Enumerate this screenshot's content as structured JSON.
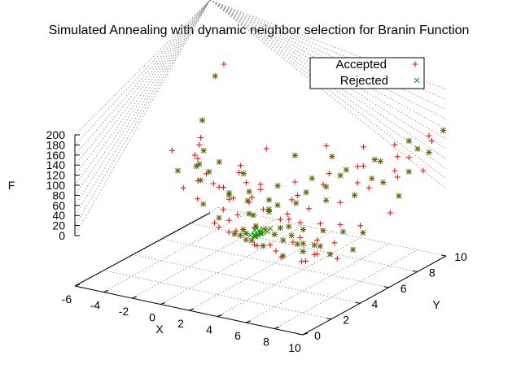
{
  "chart_data": {
    "type": "scatter",
    "title": "Simulated Annealing with dynamic neighbor selection for Branin Function",
    "xlabel": "X",
    "ylabel": "Y",
    "zlabel": "F",
    "xlim": [
      -6,
      10
    ],
    "ylim": [
      0,
      10
    ],
    "zlim": [
      0,
      200
    ],
    "xticks": [
      "-6",
      "-4",
      "-2",
      "0",
      "2",
      "4",
      "6",
      "8",
      "10"
    ],
    "yticks": [
      "0",
      "2",
      "4",
      "6",
      "8",
      "10"
    ],
    "zticks": [
      "0",
      "20",
      "40",
      "60",
      "80",
      "100",
      "120",
      "140",
      "160",
      "180",
      "200"
    ],
    "legend": "top-right",
    "grid": true,
    "colors": {
      "accepted": "#ff0000",
      "rejected": "#00a000",
      "accepted_marker": "plus",
      "rejected_marker": "x"
    },
    "series": [
      {
        "name": "Accepted",
        "points": [
          [
            -5.2,
            9.6,
            195
          ],
          [
            -5.0,
            8.8,
            185
          ],
          [
            -4.6,
            7.5,
            120
          ],
          [
            -4.0,
            6.8,
            100
          ],
          [
            -3.6,
            6.6,
            80
          ],
          [
            -3.2,
            5.9,
            105
          ],
          [
            -2.8,
            5.5,
            75
          ],
          [
            -2.6,
            5.2,
            92
          ],
          [
            -2.3,
            4.8,
            85
          ],
          [
            -2.0,
            4.4,
            115
          ],
          [
            -1.8,
            5.0,
            70
          ],
          [
            -1.4,
            5.5,
            88
          ],
          [
            -1.0,
            4.7,
            60
          ],
          [
            -0.8,
            3.6,
            85
          ],
          [
            -0.4,
            3.0,
            60
          ],
          [
            0.0,
            3.4,
            110
          ],
          [
            0.3,
            3.8,
            75
          ],
          [
            0.6,
            4.2,
            55
          ],
          [
            0.9,
            4.6,
            95
          ],
          [
            1.2,
            3.2,
            45
          ],
          [
            1.5,
            2.6,
            40
          ],
          [
            1.8,
            3.3,
            70
          ],
          [
            2.0,
            2.8,
            35
          ],
          [
            2.3,
            3.8,
            60
          ],
          [
            2.6,
            4.4,
            85
          ],
          [
            2.9,
            3.6,
            38
          ],
          [
            3.1,
            2.2,
            30
          ],
          [
            3.3,
            3.4,
            22
          ],
          [
            3.6,
            4.0,
            45
          ],
          [
            3.9,
            2.8,
            15
          ],
          [
            4.2,
            2.4,
            40
          ],
          [
            4.4,
            3.2,
            65
          ],
          [
            4.7,
            4.3,
            30
          ],
          [
            5.0,
            2.2,
            12
          ],
          [
            5.3,
            3.6,
            55
          ],
          [
            5.6,
            2.4,
            35
          ],
          [
            5.9,
            1.8,
            25
          ],
          [
            6.2,
            2.8,
            48
          ],
          [
            6.5,
            1.6,
            20
          ],
          [
            6.8,
            2.4,
            40
          ],
          [
            7.1,
            1.4,
            15
          ],
          [
            7.4,
            2.2,
            30
          ],
          [
            7.7,
            1.6,
            45
          ],
          [
            8.0,
            2.0,
            22
          ],
          [
            8.3,
            1.6,
            10
          ],
          [
            8.6,
            2.2,
            35
          ],
          [
            9.0,
            1.8,
            25
          ],
          [
            9.3,
            2.6,
            15
          ],
          [
            9.6,
            2.8,
            5
          ],
          [
            9.8,
            1.2,
            40
          ],
          [
            2.8,
            2.8,
            10
          ],
          [
            3.4,
            2.6,
            8
          ],
          [
            4.0,
            3.0,
            18
          ],
          [
            2.4,
            2.4,
            20
          ],
          [
            1.6,
            3.8,
            28
          ],
          [
            0.4,
            4.4,
            42
          ],
          [
            -0.6,
            5.0,
            50
          ],
          [
            3.0,
            4.6,
            30
          ],
          [
            4.6,
            4.9,
            52
          ],
          [
            5.2,
            5.2,
            40
          ],
          [
            6.0,
            5.6,
            55
          ],
          [
            6.6,
            6.0,
            48
          ],
          [
            7.2,
            6.4,
            60
          ],
          [
            7.8,
            6.8,
            72
          ],
          [
            8.4,
            7.2,
            80
          ],
          [
            9.0,
            7.6,
            88
          ],
          [
            9.4,
            8.0,
            95
          ],
          [
            8.8,
            8.6,
            110
          ],
          [
            9.8,
            9.0,
            120
          ],
          [
            9.2,
            9.6,
            140
          ],
          [
            8.2,
            9.2,
            130
          ],
          [
            7.6,
            8.8,
            125
          ],
          [
            6.8,
            8.2,
            100
          ],
          [
            6.2,
            7.6,
            92
          ],
          [
            5.6,
            7.0,
            80
          ],
          [
            5.0,
            6.4,
            68
          ],
          [
            4.4,
            5.8,
            58
          ],
          [
            3.8,
            5.4,
            46
          ],
          [
            3.2,
            5.0,
            38
          ],
          [
            2.6,
            4.6,
            32
          ],
          [
            2.0,
            4.2,
            26
          ],
          [
            1.4,
            4.8,
            36
          ],
          [
            0.8,
            5.4,
            44
          ],
          [
            0.2,
            5.8,
            52
          ],
          [
            -0.4,
            6.2,
            60
          ],
          [
            -1.0,
            6.6,
            66
          ],
          [
            1.0,
            6.0,
            40
          ],
          [
            1.8,
            6.4,
            46
          ],
          [
            2.6,
            6.8,
            52
          ],
          [
            3.4,
            7.2,
            58
          ],
          [
            4.2,
            7.6,
            66
          ],
          [
            5.0,
            8.0,
            72
          ],
          [
            5.8,
            8.4,
            78
          ],
          [
            6.6,
            8.8,
            86
          ],
          [
            7.4,
            9.2,
            94
          ],
          [
            8.2,
            9.8,
            105
          ],
          [
            4.0,
            4.4,
            24
          ],
          [
            4.6,
            3.8,
            20
          ],
          [
            5.4,
            4.4,
            26
          ],
          [
            6.0,
            4.0,
            22
          ],
          [
            6.6,
            4.6,
            28
          ],
          [
            7.2,
            4.2,
            24
          ],
          [
            7.8,
            4.8,
            30
          ],
          [
            8.4,
            4.4,
            26
          ],
          [
            9.0,
            5.0,
            32
          ],
          [
            9.6,
            4.6,
            28
          ],
          [
            3.6,
            6.0,
            44
          ],
          [
            4.8,
            6.8,
            56
          ],
          [
            6.4,
            7.4,
            64
          ],
          [
            7.0,
            7.8,
            70
          ],
          [
            8.0,
            8.4,
            82
          ],
          [
            2.2,
            5.4,
            36
          ],
          [
            1.2,
            5.2,
            38
          ],
          [
            0.0,
            4.8,
            46
          ],
          [
            -1.6,
            4.2,
            70
          ],
          [
            -2.6,
            3.8,
            90
          ],
          [
            -3.8,
            4.6,
            110
          ],
          [
            -1.2,
            2.8,
            80
          ],
          [
            0.6,
            2.4,
            65
          ],
          [
            2.2,
            1.6,
            50
          ],
          [
            4.0,
            1.2,
            45
          ],
          [
            6.0,
            0.8,
            40
          ],
          [
            8.0,
            0.6,
            35
          ],
          [
            9.4,
            0.8,
            30
          ],
          [
            5.6,
            3.0,
            14
          ],
          [
            6.4,
            3.4,
            18
          ],
          [
            7.0,
            3.0,
            16
          ],
          [
            7.6,
            3.4,
            20
          ],
          [
            8.2,
            3.0,
            18
          ],
          [
            8.8,
            3.4,
            22
          ],
          [
            3.0,
            3.0,
            12
          ],
          [
            3.8,
            3.6,
            16
          ],
          [
            4.4,
            2.0,
            22
          ],
          [
            5.2,
            1.4,
            28
          ],
          [
            2.6,
            3.2,
            14
          ],
          [
            1.9,
            2.2,
            30
          ],
          [
            9.9,
            3.6,
            12
          ],
          [
            9.7,
            6.4,
            40
          ],
          [
            9.5,
            7.2,
            60
          ],
          [
            9.8,
            8.6,
            90
          ],
          [
            9.9,
            9.9,
            150
          ],
          [
            9.6,
            9.4,
            135
          ],
          [
            3.2,
            8.8,
            75
          ],
          [
            2.4,
            9.2,
            85
          ],
          [
            1.0,
            8.4,
            70
          ],
          [
            -0.6,
            8.0,
            80
          ],
          [
            4.6,
            9.6,
            90
          ]
        ]
      },
      {
        "name": "Rejected",
        "points": [
          [
            -5.0,
            8.8,
            185
          ],
          [
            -4.6,
            7.5,
            120
          ],
          [
            -3.6,
            6.6,
            80
          ],
          [
            -2.8,
            5.5,
            75
          ],
          [
            -2.3,
            4.8,
            85
          ],
          [
            -1.4,
            5.5,
            88
          ],
          [
            -0.8,
            3.6,
            85
          ],
          [
            0.0,
            3.4,
            110
          ],
          [
            0.6,
            4.2,
            55
          ],
          [
            1.5,
            2.6,
            40
          ],
          [
            2.3,
            3.8,
            60
          ],
          [
            2.9,
            3.6,
            38
          ],
          [
            3.3,
            3.4,
            22
          ],
          [
            3.9,
            2.8,
            15
          ],
          [
            4.4,
            3.2,
            65
          ],
          [
            5.0,
            2.2,
            12
          ],
          [
            5.6,
            2.4,
            35
          ],
          [
            6.2,
            2.8,
            48
          ],
          [
            6.8,
            2.4,
            40
          ],
          [
            7.4,
            2.2,
            30
          ],
          [
            8.0,
            2.0,
            22
          ],
          [
            8.6,
            2.2,
            35
          ],
          [
            9.3,
            2.6,
            15
          ],
          [
            2.8,
            2.8,
            10
          ],
          [
            3.4,
            2.6,
            8
          ],
          [
            4.0,
            3.0,
            18
          ],
          [
            3.0,
            4.6,
            30
          ],
          [
            4.6,
            4.9,
            52
          ],
          [
            6.0,
            5.6,
            55
          ],
          [
            7.2,
            6.4,
            60
          ],
          [
            8.4,
            7.2,
            80
          ],
          [
            9.4,
            8.0,
            95
          ],
          [
            9.8,
            9.0,
            120
          ],
          [
            8.2,
            9.2,
            130
          ],
          [
            6.8,
            8.2,
            100
          ],
          [
            5.6,
            7.0,
            80
          ],
          [
            4.4,
            5.8,
            58
          ],
          [
            3.2,
            5.0,
            38
          ],
          [
            2.0,
            4.2,
            26
          ],
          [
            0.8,
            5.4,
            44
          ],
          [
            -0.4,
            6.2,
            60
          ],
          [
            1.8,
            6.4,
            46
          ],
          [
            3.4,
            7.2,
            58
          ],
          [
            5.0,
            8.0,
            72
          ],
          [
            6.6,
            8.8,
            86
          ],
          [
            8.2,
            9.8,
            105
          ],
          [
            4.6,
            3.8,
            20
          ],
          [
            6.0,
            4.0,
            22
          ],
          [
            7.2,
            4.2,
            24
          ],
          [
            8.4,
            4.4,
            26
          ],
          [
            9.6,
            4.6,
            28
          ],
          [
            4.8,
            6.8,
            56
          ],
          [
            7.0,
            7.8,
            70
          ],
          [
            2.2,
            5.4,
            36
          ],
          [
            0.0,
            4.8,
            46
          ],
          [
            -2.6,
            3.8,
            90
          ],
          [
            0.6,
            2.4,
            65
          ],
          [
            4.0,
            1.2,
            45
          ],
          [
            8.0,
            0.6,
            35
          ],
          [
            5.6,
            3.0,
            14
          ],
          [
            7.0,
            3.0,
            16
          ],
          [
            8.2,
            3.0,
            18
          ],
          [
            3.0,
            3.0,
            12
          ],
          [
            4.4,
            2.0,
            22
          ],
          [
            2.6,
            3.2,
            14
          ],
          [
            9.9,
            3.6,
            12
          ],
          [
            9.5,
            7.2,
            60
          ],
          [
            9.9,
            9.9,
            150
          ],
          [
            3.2,
            8.8,
            75
          ],
          [
            1.0,
            8.4,
            70
          ],
          [
            3.6,
            3.2,
            10
          ],
          [
            3.7,
            3.3,
            12
          ],
          [
            3.5,
            3.1,
            11
          ],
          [
            3.8,
            3.4,
            13
          ],
          [
            3.9,
            3.2,
            14
          ],
          [
            3.4,
            3.5,
            12
          ],
          [
            3.6,
            3.6,
            15
          ],
          [
            4.1,
            3.4,
            16
          ],
          [
            3.3,
            3.0,
            10
          ],
          [
            4.0,
            3.7,
            17
          ],
          [
            3.7,
            2.9,
            12
          ],
          [
            3.2,
            3.4,
            13
          ]
        ]
      }
    ]
  }
}
